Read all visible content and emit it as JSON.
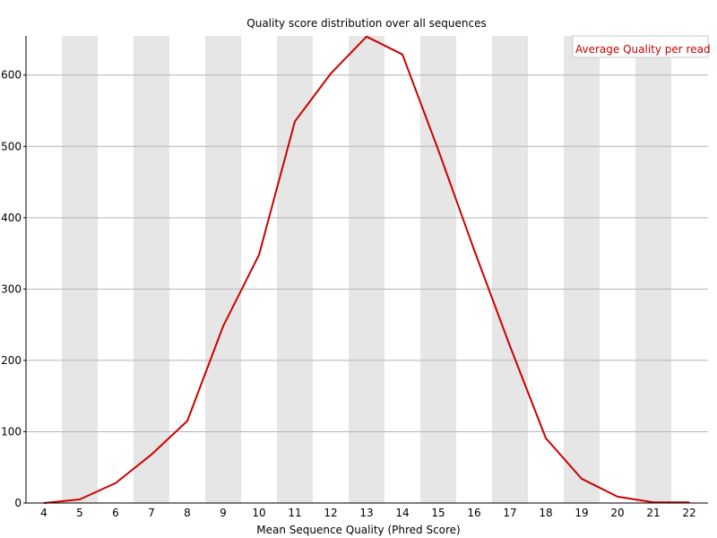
{
  "chart_data": {
    "type": "line",
    "title": "Quality score distribution over all sequences",
    "xlabel": "Mean Sequence Quality (Phred Score)",
    "ylabel": "",
    "x": [
      4,
      5,
      6,
      7,
      8,
      9,
      10,
      11,
      12,
      13,
      14,
      15,
      16,
      17,
      18,
      19,
      20,
      21,
      22
    ],
    "x_tick_labels": [
      "4",
      "5",
      "6",
      "7",
      "8",
      "9",
      "10",
      "11",
      "12",
      "13",
      "14",
      "15",
      "16",
      "17",
      "18",
      "19",
      "20",
      "21",
      "22"
    ],
    "y_ticks": [
      0,
      100,
      200,
      300,
      400,
      500,
      600
    ],
    "y_tick_labels": [
      "0",
      "100",
      "200",
      "300",
      "400",
      "500",
      "600"
    ],
    "ylim": [
      0,
      655
    ],
    "grid": "horizontal lines with alternating vertical bands",
    "legend_placement": "top-right",
    "series": [
      {
        "name": "Average Quality per read",
        "color": "#cc0000",
        "values": [
          0,
          5,
          28,
          68,
          115,
          248,
          348,
          535,
          602,
          654,
          629,
          495,
          355,
          220,
          91,
          34,
          9,
          1,
          1
        ]
      }
    ],
    "colors": {
      "band": "#e6e6e6",
      "grid": "#b4b4b4",
      "axis": "#000000"
    }
  }
}
